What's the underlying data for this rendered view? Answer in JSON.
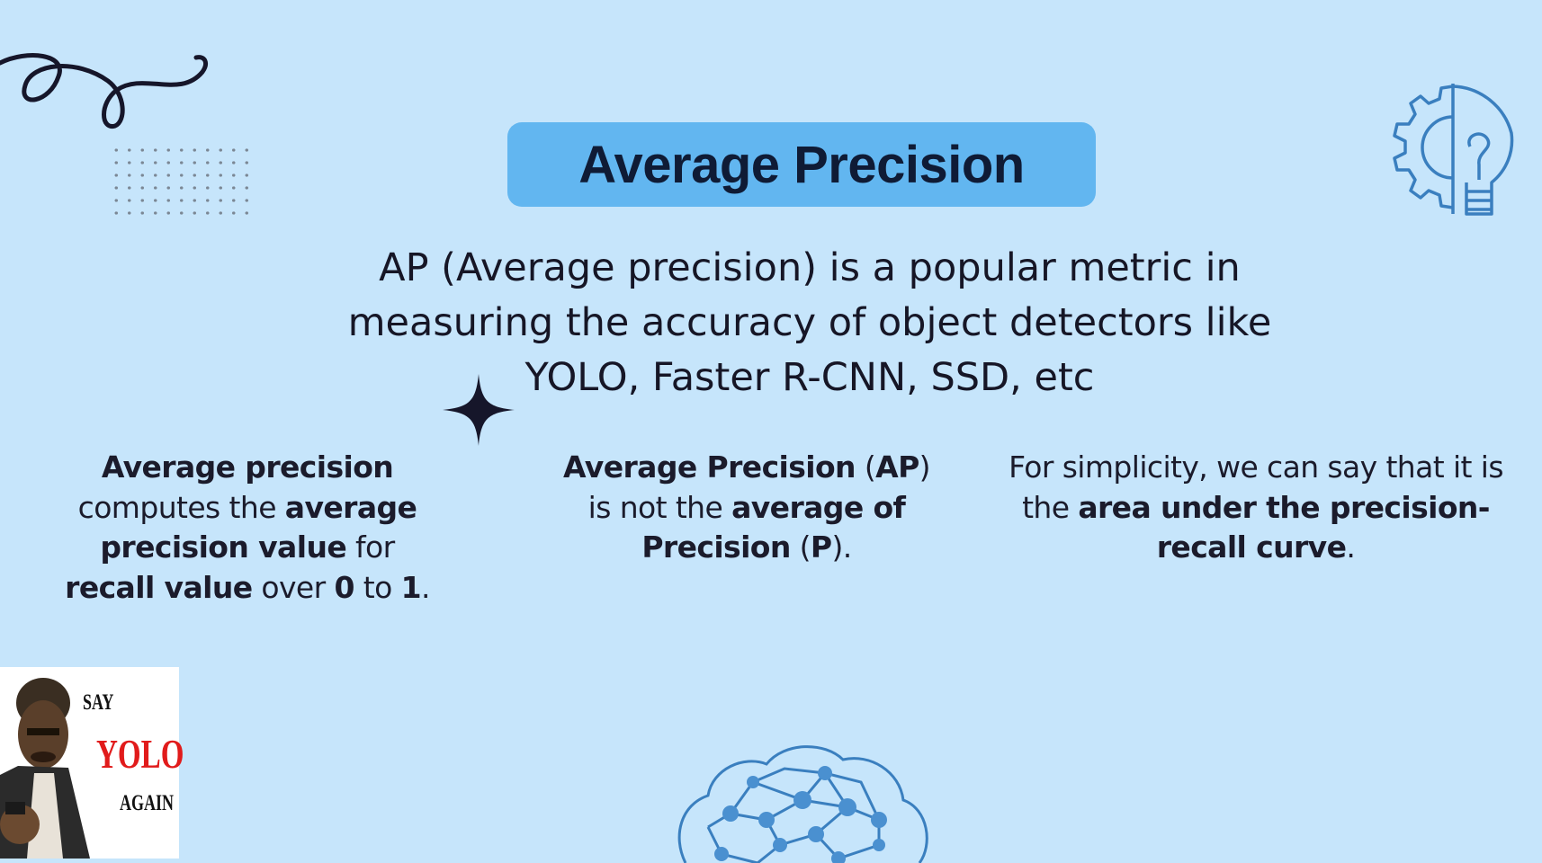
{
  "title": "Average Precision",
  "intro": {
    "lines": [
      "AP (Average precision) is a popular metric in",
      "measuring the accuracy of object detectors like",
      "YOLO, Faster R-CNN, SSD, etc"
    ]
  },
  "columns": {
    "col1": {
      "l1_b1": "Average precision",
      "l2_t1": "computes the ",
      "l2_b1": "average",
      "l3_b1": "precision value",
      "l3_t1": " for",
      "l4_b1": "recall value",
      "l4_t1": " over ",
      "l4_b2": "0",
      "l4_t2": " to ",
      "l4_b3": "1",
      "l4_t3": "."
    },
    "col2": {
      "l1_b1": "Average Precision",
      "l1_t1": " (",
      "l1_b2": "AP",
      "l1_t2": ")",
      "l2_t1": "is not the ",
      "l2_b1": "average of",
      "l3_b1": "Precision",
      "l3_t1": " (",
      "l3_b2": "P",
      "l3_t2": ")."
    },
    "col3": {
      "l1_t1": "For simplicity, we can say that it is",
      "l2_t1": "the ",
      "l2_b1": "area under the precision-",
      "l3_b1": "recall curve",
      "l3_t1": "."
    }
  },
  "meme": {
    "say": "SAY",
    "yolo": "YOLO",
    "again": "AGAIN"
  },
  "icons": [
    "squiggle-icon",
    "dot-grid",
    "gear-bulb-icon",
    "sparkle-icon",
    "brain-network-icon"
  ],
  "colors": {
    "background": "#c6e5fb",
    "title_pill": "#62b6f0",
    "title_text": "#0f1b35",
    "icon_stroke": "#3a7fbf",
    "yolo_red": "#e11b1b"
  }
}
